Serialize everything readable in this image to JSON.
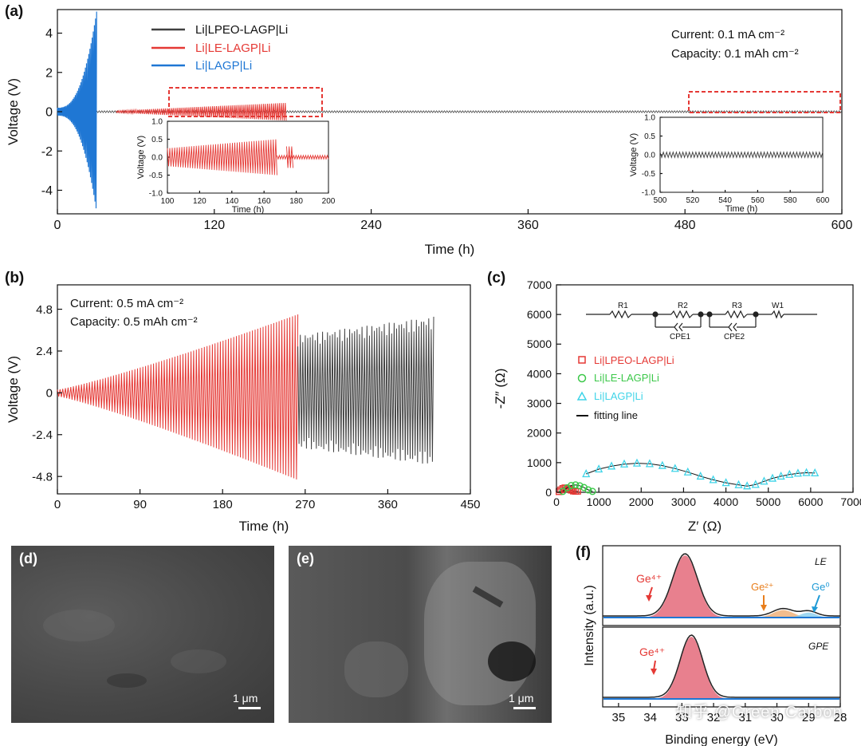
{
  "panels": {
    "a": "(a)",
    "b": "(b)",
    "c": "(c)",
    "d": "(d)",
    "e": "(e)",
    "f": "(f)"
  },
  "colors": {
    "gpe": "#404040",
    "le": "#e53935",
    "lagp": "#1f77d4",
    "cyan": "#3fd4e8",
    "green": "#3cc84a",
    "pink": "#e46a7a"
  },
  "chart_data": [
    {
      "id": "a",
      "type": "line",
      "xlabel": "Time (h)",
      "ylabel": "Voltage (V)",
      "xlim": [
        0,
        600
      ],
      "ylim": [
        -5.2,
        5.2
      ],
      "xticks": [
        0,
        120,
        240,
        360,
        480,
        600
      ],
      "yticks": [
        -4,
        -2,
        0,
        2,
        4
      ],
      "conditions": [
        "Current:  0.1 mA cm⁻²",
        "Capacity:  0.1 mAh cm⁻²"
      ],
      "series": [
        {
          "name": "Li|LPEO-LAGP|Li",
          "color": "#404040",
          "x_range": [
            0,
            600
          ],
          "amplitude": 0.05
        },
        {
          "name": "Li|LE-LAGP|Li",
          "color": "#e53935",
          "x_range": [
            45,
            175
          ],
          "amplitude_start": 0.05,
          "amplitude_end": 0.45
        },
        {
          "name": "Li|LAGP|Li",
          "color": "#1f77d4",
          "x_range": [
            0,
            30
          ],
          "amplitude_start": 0.2,
          "amplitude_end": 5.1
        }
      ],
      "insets": [
        {
          "xlabel": "Time (h)",
          "ylabel": "Voltage (V)",
          "xlim": [
            100,
            200
          ],
          "ylim": [
            -1.0,
            1.0
          ],
          "xticks": [
            100,
            120,
            140,
            160,
            180,
            200
          ],
          "yticks": [
            -1.0,
            -0.5,
            0.0,
            0.5,
            1.0
          ]
        },
        {
          "xlabel": "Time (h)",
          "ylabel": "Voltage (V)",
          "xlim": [
            500,
            600
          ],
          "ylim": [
            -1.0,
            1.0
          ],
          "xticks": [
            500,
            520,
            540,
            560,
            580,
            600
          ],
          "yticks": [
            -1.0,
            -0.5,
            0.0,
            0.5,
            1.0
          ]
        }
      ]
    },
    {
      "id": "b",
      "type": "line",
      "xlabel": "Time (h)",
      "ylabel": "Voltage (V)",
      "xlim": [
        0,
        450
      ],
      "ylim": [
        -5.8,
        6.2
      ],
      "xticks": [
        0,
        90,
        180,
        270,
        360,
        450
      ],
      "yticks": [
        -4.8,
        -2.4,
        0.0,
        2.4,
        4.8
      ],
      "conditions": [
        "Current:   0.5 mA cm⁻²",
        "Capacity:  0.5 mAh cm⁻²"
      ],
      "series": [
        {
          "name": "Li|LE-LAGP|Li",
          "color": "#e53935",
          "x_range": [
            0,
            262
          ],
          "amplitude_start": 0.2,
          "amplitude_end": 5.0
        },
        {
          "name": "Li|LPEO-LAGP|Li",
          "color": "#404040",
          "x_range": [
            262,
            410
          ],
          "amplitude_start": 3.5,
          "amplitude_end": 4.6
        }
      ]
    },
    {
      "id": "c",
      "type": "scatter",
      "xlabel": "Z′ (Ω)",
      "ylabel": "-Z″ (Ω)",
      "xlim": [
        0,
        7000
      ],
      "ylim": [
        0,
        7000
      ],
      "xticks": [
        0,
        1000,
        2000,
        3000,
        4000,
        5000,
        6000,
        7000
      ],
      "yticks": [
        0,
        1000,
        2000,
        3000,
        4000,
        5000,
        6000,
        7000
      ],
      "circuit": [
        "R1",
        "R2",
        "CPE1",
        "R3",
        "CPE2",
        "W1"
      ],
      "series": [
        {
          "name": "Li|LPEO-LAGP|Li",
          "marker": "square",
          "color": "#e53935",
          "x": [
            60,
            100,
            150,
            200,
            250,
            300,
            350,
            400,
            450,
            500
          ],
          "y": [
            20,
            80,
            130,
            150,
            140,
            110,
            70,
            40,
            30,
            35
          ]
        },
        {
          "name": "Li|LE-LAGP|Li",
          "marker": "circle",
          "color": "#3cc84a",
          "x": [
            150,
            250,
            350,
            450,
            550,
            650,
            750,
            850
          ],
          "y": [
            30,
            150,
            230,
            250,
            220,
            160,
            80,
            30
          ]
        },
        {
          "name": "Li|LAGP|Li",
          "marker": "triangle",
          "color": "#3fd4e8",
          "x": [
            700,
            1000,
            1300,
            1600,
            1900,
            2200,
            2500,
            2800,
            3100,
            3400,
            3700,
            4000,
            4300,
            4500,
            4700,
            4900,
            5100,
            5300,
            5500,
            5700,
            5900,
            6100
          ],
          "y": [
            620,
            780,
            880,
            950,
            980,
            960,
            900,
            800,
            680,
            540,
            420,
            320,
            250,
            210,
            260,
            370,
            470,
            540,
            600,
            640,
            660,
            650
          ]
        },
        {
          "name": "fitting line",
          "marker": "line",
          "color": "#111111"
        }
      ]
    },
    {
      "id": "f",
      "type": "area",
      "xlabel": "Binding energy (eV)",
      "ylabel": "Intensity (a.u.)",
      "xlim": [
        35.5,
        28
      ],
      "xticks": [
        35,
        34,
        33,
        32,
        31,
        30,
        29,
        28
      ],
      "subplots": [
        {
          "tag": "LE",
          "peaks": [
            {
              "label": "Ge⁴⁺",
              "center": 32.9,
              "height": 1.0,
              "width": 0.55
            },
            {
              "label": "Ge²⁺",
              "center": 29.8,
              "height": 0.12,
              "width": 0.45
            },
            {
              "label": "Ge⁰",
              "center": 29.0,
              "height": 0.08,
              "width": 0.35
            }
          ]
        },
        {
          "tag": "GPE",
          "peaks": [
            {
              "label": "Ge⁴⁺",
              "center": 32.7,
              "height": 1.0,
              "width": 0.5
            }
          ]
        }
      ]
    }
  ],
  "sem": {
    "d": {
      "scale": "1 μm"
    },
    "e": {
      "scale": "1 μm"
    }
  },
  "watermark": "知乎 @Green Carbon"
}
